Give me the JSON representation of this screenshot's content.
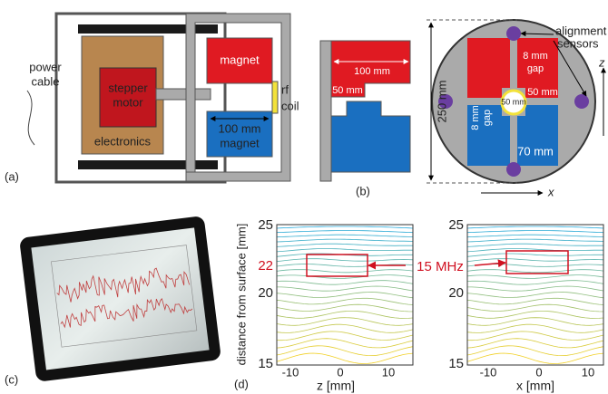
{
  "panel_a": {
    "label": "(a)",
    "power_cable": [
      "power",
      "cable"
    ],
    "stepper_motor": [
      "stepper",
      "motor"
    ],
    "electronics": "electronics",
    "magnet_top": "magnet",
    "magnet_bottom": "magnet",
    "dimension": "100 mm",
    "rf_coil": [
      "rf",
      "coil"
    ]
  },
  "panel_b": {
    "label": "(b)",
    "side_width": "100 mm",
    "side_gap": "50 mm",
    "diameter": "250 mm",
    "alignment_sensors": [
      "alignment",
      "sensors"
    ],
    "top_gap": [
      "8 mm",
      "gap"
    ],
    "right_width": "50 mm",
    "side_gap_vertical": [
      "8 mm",
      "gap"
    ],
    "center_size": "50 mm",
    "bottom_width": "70 mm",
    "axis_z": "z",
    "axis_x": "x"
  },
  "panel_c": {
    "label": "(c)"
  },
  "panel_d": {
    "label": "(d)",
    "y_label": "distance from surface [mm]",
    "y_ticks": [
      "25",
      "22",
      "20",
      "15"
    ],
    "left_x_label": "z [mm]",
    "right_x_label": "x [mm]",
    "x_ticks": [
      "-10",
      "0",
      "10"
    ],
    "frequency": "15 MHz"
  }
}
